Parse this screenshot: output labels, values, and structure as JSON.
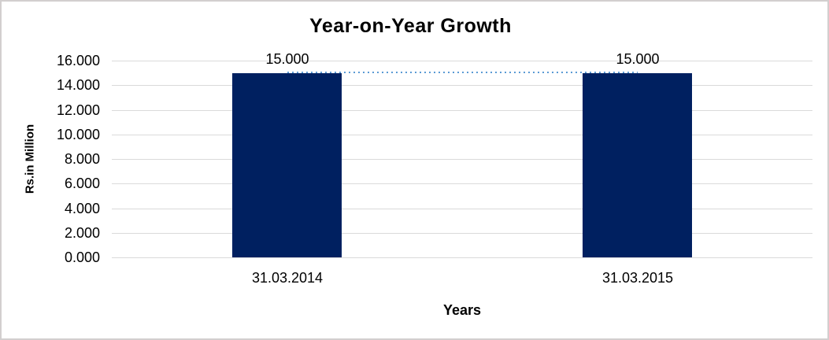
{
  "chart_data": {
    "type": "bar",
    "title": "Year-on-Year Growth",
    "xlabel": "Years",
    "ylabel": "Rs.in Million",
    "categories": [
      "31.03.2014",
      "31.03.2015"
    ],
    "values": [
      15.0,
      15.0
    ],
    "data_labels": [
      "15.000",
      "15.000"
    ],
    "ytick_values": [
      16,
      14,
      12,
      10,
      8,
      6,
      4,
      2,
      0
    ],
    "ytick_labels": [
      "16.000",
      "14.000",
      "12.000",
      "10.000",
      "8.000",
      "6.000",
      "4.000",
      "2.000",
      "0.000"
    ],
    "ylim": [
      0,
      16
    ],
    "grid": true,
    "legend_position": "none",
    "bar_color": "#002060",
    "gridline_color": "#dadada",
    "trendline": {
      "style": "dotted",
      "color": "#5B9BD5",
      "value": 15.0,
      "from_category_index": 0,
      "to_category_index": 1
    }
  }
}
